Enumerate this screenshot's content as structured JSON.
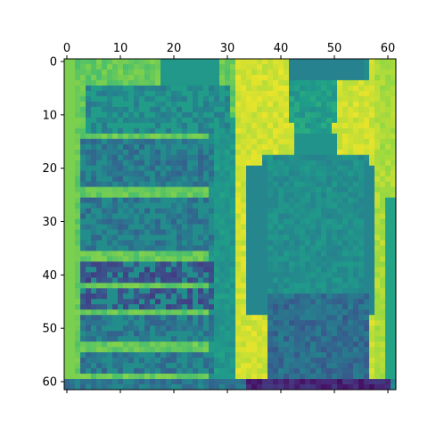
{
  "chart_data": {
    "type": "heatmap",
    "colormap": "viridis",
    "image_size": [
      62,
      62
    ],
    "xlim": [
      -0.5,
      61.5
    ],
    "ylim": [
      61.5,
      -0.5
    ],
    "x_ticks": [
      0,
      10,
      20,
      30,
      40,
      50,
      60
    ],
    "y_ticks": [
      0,
      10,
      20,
      30,
      40,
      50,
      60
    ],
    "x_tick_labels": [
      "0",
      "10",
      "20",
      "30",
      "40",
      "50",
      "60"
    ],
    "y_tick_labels": [
      "0",
      "10",
      "20",
      "30",
      "40",
      "50",
      "60"
    ],
    "x_axis_position": "top-and-bottom (labels on top)",
    "grid": false,
    "description_of_values": "Approximate intensity map (0=dark purple, 1=yellow): left half shows a signboard with rows of dark text on a light green background; right half shows a standing person against a bright yellow-green backdrop; bottom rows are dark."
  }
}
